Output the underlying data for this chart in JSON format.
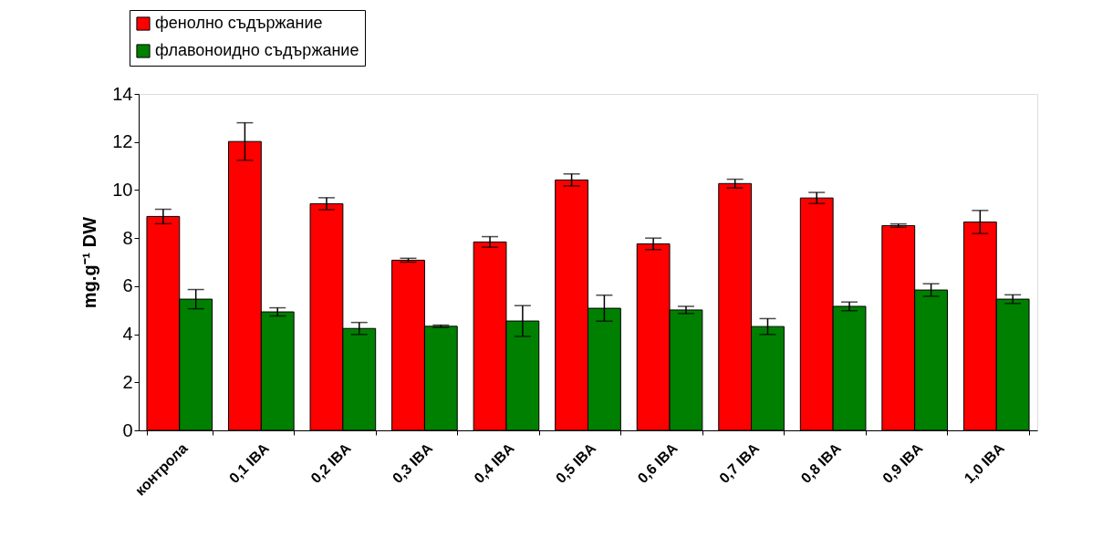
{
  "chart_data": {
    "type": "bar",
    "ylabel": "mg.g⁻¹ DW",
    "categories": [
      "контрола",
      "0,1 IBA",
      "0,2 IBA",
      "0,3 IBA",
      "0,4 IBA",
      "0,5 IBA",
      "0,6 IBA",
      "0,7 IBA",
      "0,8 IBA",
      "0,9 IBA",
      "1,0 IBA"
    ],
    "series": [
      {
        "name": "фенолно съдържание",
        "color": "#ff0000",
        "values": [
          8.9,
          12.02,
          9.43,
          7.08,
          7.84,
          10.42,
          7.76,
          10.27,
          9.67,
          8.52,
          8.67
        ],
        "errors": [
          0.3,
          0.78,
          0.25,
          0.08,
          0.22,
          0.25,
          0.24,
          0.18,
          0.23,
          0.07,
          0.48
        ]
      },
      {
        "name": "флавоноидно съдържание",
        "color": "#008000",
        "values": [
          5.46,
          4.93,
          4.24,
          4.33,
          4.55,
          5.08,
          5.01,
          4.32,
          5.16,
          5.84,
          5.46
        ],
        "errors": [
          0.4,
          0.17,
          0.25,
          0.05,
          0.64,
          0.54,
          0.15,
          0.33,
          0.18,
          0.26,
          0.18
        ]
      }
    ],
    "ylim": [
      0,
      14
    ],
    "yticks": [
      0,
      2,
      4,
      6,
      8,
      10,
      12,
      14
    ],
    "grid": false,
    "legend": "top left"
  }
}
